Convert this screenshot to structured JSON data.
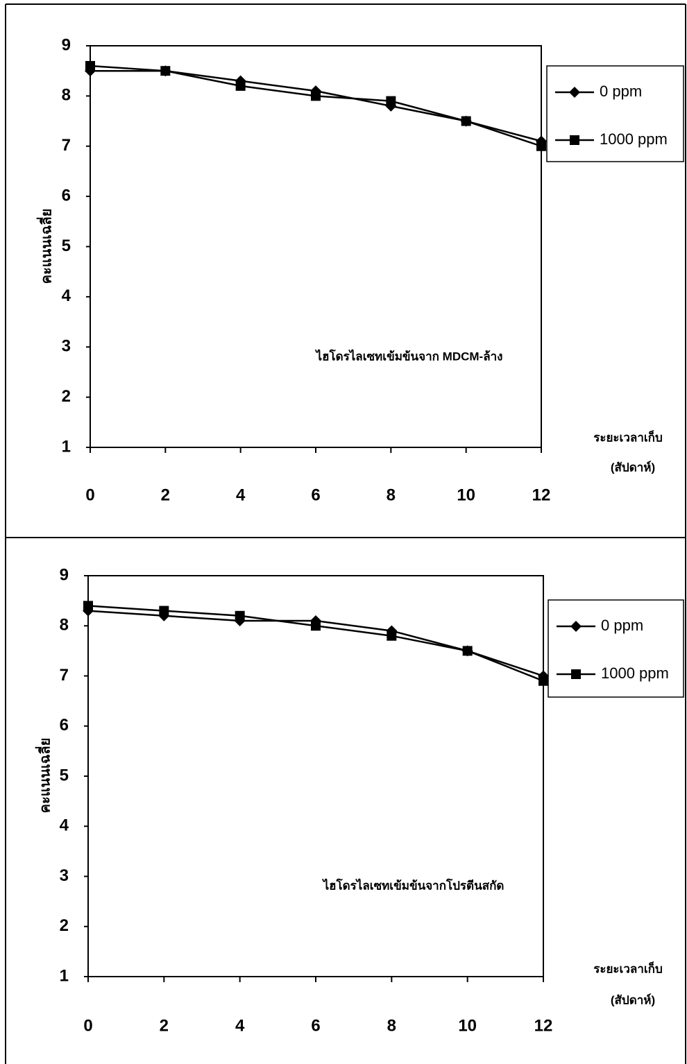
{
  "chart_data": [
    {
      "type": "line",
      "y_label": "คะแนนเฉลี่ย",
      "x_label": [
        "ระยะเวลาเก็บ",
        "(สัปดาห์)"
      ],
      "annotation": "ไฮโดรไลเซทเข้มข้นจาก MDCM-ล้าง",
      "x": [
        0,
        2,
        4,
        6,
        8,
        10,
        12
      ],
      "xlim": [
        0,
        12
      ],
      "xticks": [
        0,
        2,
        4,
        6,
        8,
        10,
        12
      ],
      "ylim": [
        1,
        9
      ],
      "yticks": [
        1,
        2,
        3,
        4,
        5,
        6,
        7,
        8,
        9
      ],
      "grid": false,
      "legend": "right",
      "series": [
        {
          "name": "0 ppm",
          "color": "#000000",
          "marker": "diamond",
          "values": [
            8.5,
            8.5,
            8.3,
            8.1,
            7.8,
            7.5,
            7.1
          ]
        },
        {
          "name": "1000 ppm",
          "color": "#000000",
          "marker": "square",
          "values": [
            8.6,
            8.5,
            8.2,
            8.0,
            7.9,
            7.5,
            7.0
          ]
        }
      ]
    },
    {
      "type": "line",
      "y_label": "คะแนนเฉลี่ย",
      "x_label": [
        "ระยะเวลาเก็บ",
        "(สัปดาห์)"
      ],
      "annotation": "ไฮโดรไลเซทเข้มข้นจากโปรตีนสกัด",
      "x": [
        0,
        2,
        4,
        6,
        8,
        10,
        12
      ],
      "xlim": [
        0,
        12
      ],
      "xticks": [
        0,
        2,
        4,
        6,
        8,
        10,
        12
      ],
      "ylim": [
        1,
        9
      ],
      "yticks": [
        1,
        2,
        3,
        4,
        5,
        6,
        7,
        8,
        9
      ],
      "grid": false,
      "legend": "right",
      "series": [
        {
          "name": "0 ppm",
          "color": "#000000",
          "marker": "diamond",
          "values": [
            8.3,
            8.2,
            8.1,
            8.1,
            7.9,
            7.5,
            7.0
          ]
        },
        {
          "name": "1000 ppm",
          "color": "#000000",
          "marker": "square",
          "values": [
            8.4,
            8.3,
            8.2,
            8.0,
            7.8,
            7.5,
            6.9
          ]
        }
      ]
    }
  ]
}
